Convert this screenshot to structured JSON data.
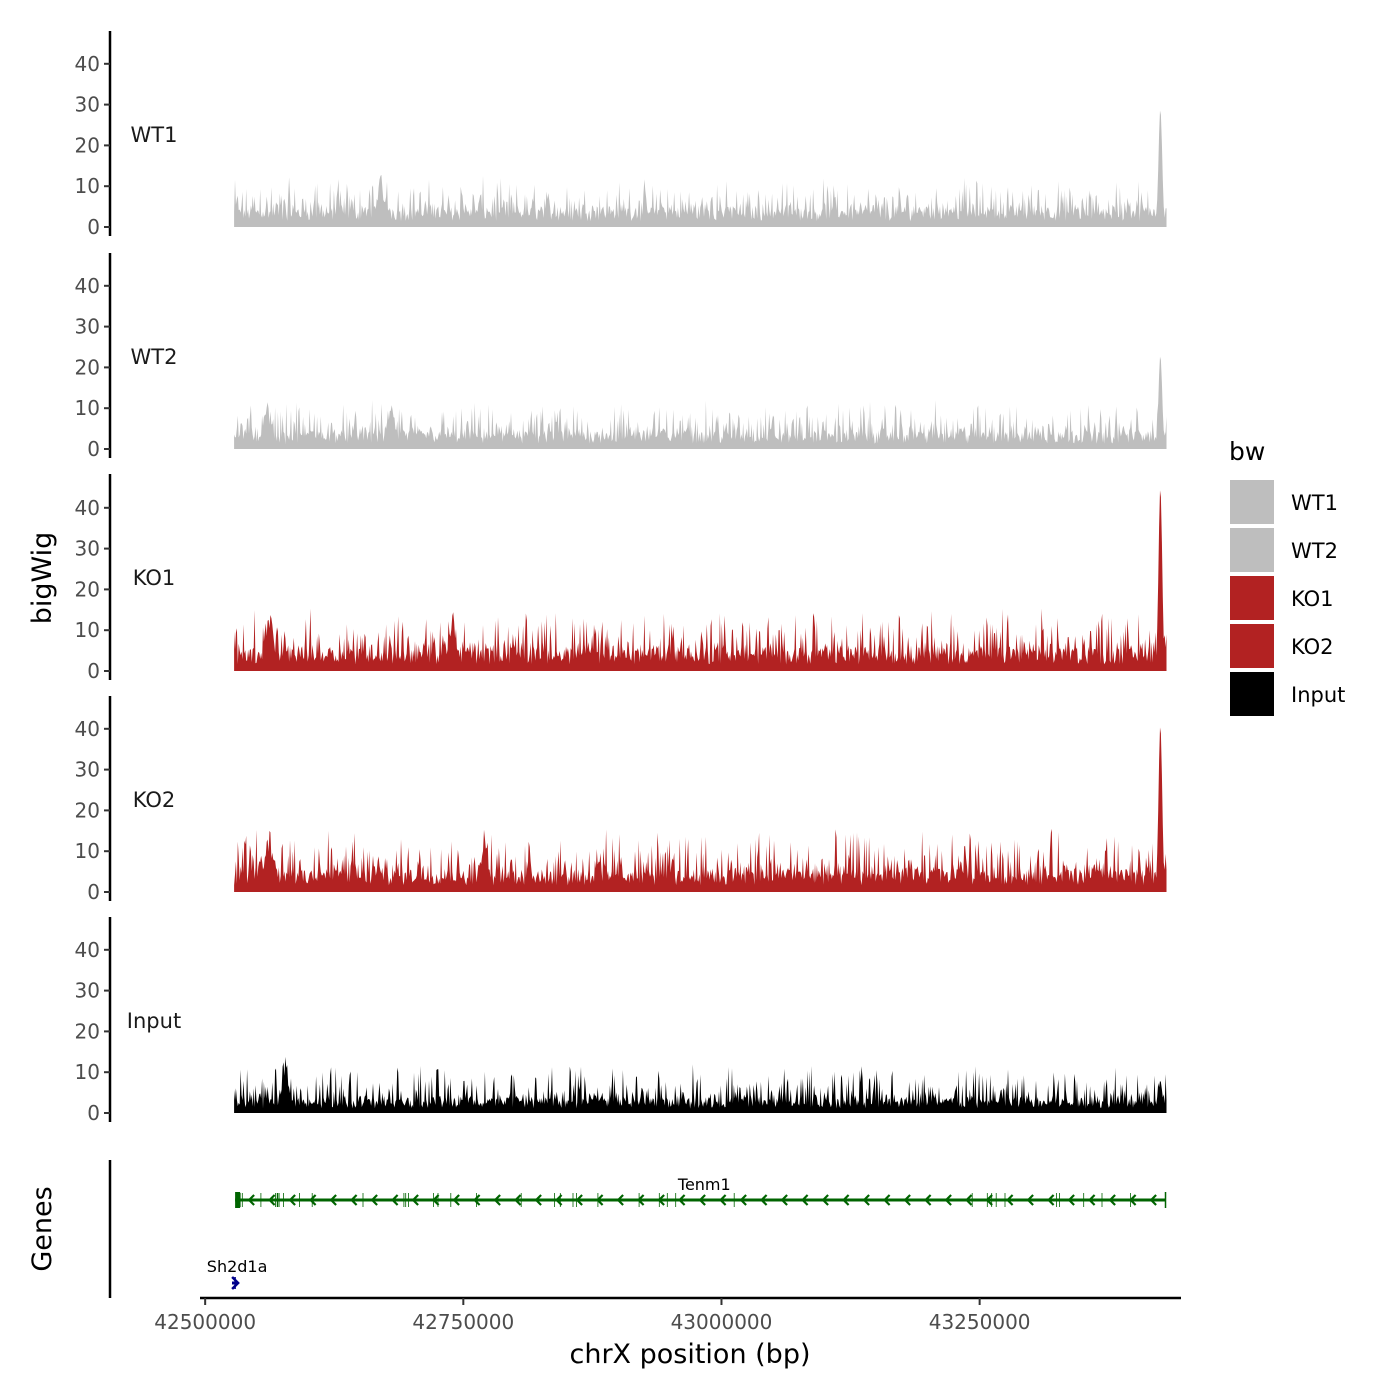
{
  "chart_data": {
    "type": "area",
    "xlabel": "chrX position (bp)",
    "ylabel": "bigWig",
    "genes_axis_label": "Genes",
    "xlim": [
      42495000,
      43445000
    ],
    "x_ticks": [
      42500000,
      42750000,
      43000000,
      43250000
    ],
    "x_tick_labels": [
      "42500000",
      "42750000",
      "43000000",
      "43250000"
    ],
    "ylim": [
      0,
      47
    ],
    "y_ticks": [
      0,
      10,
      20,
      30,
      40
    ],
    "y_tick_labels": [
      "0",
      "10",
      "20",
      "30",
      "40"
    ],
    "data_range": [
      42528000,
      43431000
    ],
    "tracks": [
      {
        "name": "WT1",
        "color": "#BEBEBE",
        "baseline": 4,
        "noise": 5,
        "peak_height": 29,
        "peaks": [
          [
            42670000,
            15
          ]
        ]
      },
      {
        "name": "WT2",
        "color": "#BEBEBE",
        "baseline": 3.5,
        "noise": 5,
        "peak_height": 23,
        "peaks": [
          [
            42560000,
            13
          ],
          [
            42680000,
            13
          ]
        ]
      },
      {
        "name": "KO1",
        "color": "#B22222",
        "baseline": 4.5,
        "noise": 6.5,
        "peak_height": 45,
        "peaks": [
          [
            42562000,
            18
          ],
          [
            42740000,
            15
          ]
        ]
      },
      {
        "name": "KO2",
        "color": "#B22222",
        "baseline": 4.5,
        "noise": 6.5,
        "peak_height": 41,
        "peaks": [
          [
            42562000,
            17
          ],
          [
            42770000,
            16
          ]
        ]
      },
      {
        "name": "Input",
        "color": "#000000",
        "baseline": 3,
        "noise": 5.5,
        "peak_height": 8,
        "peaks": [
          [
            42578000,
            15
          ]
        ]
      }
    ],
    "genes": [
      {
        "name": "Tenm1",
        "start": 42529000,
        "end": 43430000,
        "strand": "-",
        "color": "#006400",
        "row": 1
      },
      {
        "name": "Sh2d1a",
        "start": 42526000,
        "end": 42532000,
        "strand": "+",
        "color": "#00008B",
        "row": 2
      }
    ],
    "legend": {
      "title": "bw",
      "position": "right",
      "entries": [
        {
          "label": "WT1",
          "color": "#BEBEBE"
        },
        {
          "label": "WT2",
          "color": "#BEBEBE"
        },
        {
          "label": "KO1",
          "color": "#B22222"
        },
        {
          "label": "KO2",
          "color": "#B22222"
        },
        {
          "label": "Input",
          "color": "#000000"
        }
      ]
    }
  }
}
